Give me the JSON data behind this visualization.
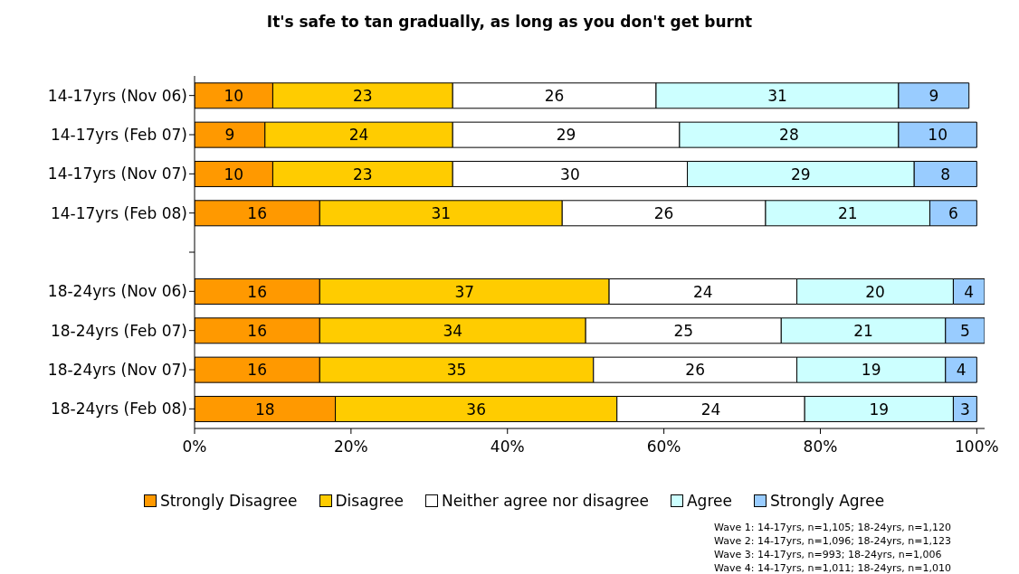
{
  "chart_data": {
    "type": "bar",
    "orientation": "horizontal",
    "stacked": true,
    "title": "It's safe to tan gradually, as long as you don't get burnt",
    "categories": [
      "14-17yrs (Nov 06)",
      "14-17yrs (Feb 07)",
      "14-17yrs (Nov 07)",
      "14-17yrs (Feb 08)",
      null,
      "18-24yrs (Nov 06)",
      "18-24yrs (Feb 07)",
      "18-24yrs (Nov 07)",
      "18-24yrs (Feb 08)"
    ],
    "series": [
      {
        "name": "Strongly Disagree",
        "color": "#ff9900",
        "values": [
          10,
          9,
          10,
          16,
          null,
          16,
          16,
          16,
          18
        ]
      },
      {
        "name": "Disagree",
        "color": "#ffcc00",
        "values": [
          23,
          24,
          23,
          31,
          null,
          37,
          34,
          35,
          36
        ]
      },
      {
        "name": "Neither agree nor disagree",
        "color": "#ffffff",
        "values": [
          26,
          29,
          30,
          26,
          null,
          24,
          25,
          26,
          24
        ]
      },
      {
        "name": "Agree",
        "color": "#ccffff",
        "values": [
          31,
          28,
          29,
          21,
          null,
          20,
          21,
          19,
          19
        ]
      },
      {
        "name": "Strongly Agree",
        "color": "#99ccff",
        "values": [
          9,
          10,
          8,
          6,
          null,
          4,
          5,
          4,
          3
        ]
      }
    ],
    "xlim": [
      0,
      101
    ],
    "xticks": [
      {
        "value": 0,
        "label": "0%"
      },
      {
        "value": 20,
        "label": "20%"
      },
      {
        "value": 40,
        "label": "40%"
      },
      {
        "value": 60,
        "label": "60%"
      },
      {
        "value": 80,
        "label": "80%"
      },
      {
        "value": 100,
        "label": "100%"
      }
    ],
    "data_labels": true,
    "grid": false,
    "legend": "bottom",
    "annotations": [
      "Wave 1: 14-17yrs, n=1,105; 18-24yrs, n=1,120",
      "Wave 2: 14-17yrs, n=1,096; 18-24yrs, n=1,123",
      "Wave 3: 14-17yrs, n=993; 18-24yrs, n=1,006",
      "Wave 4: 14-17yrs, n=1,011; 18-24yrs, n=1,010"
    ]
  }
}
